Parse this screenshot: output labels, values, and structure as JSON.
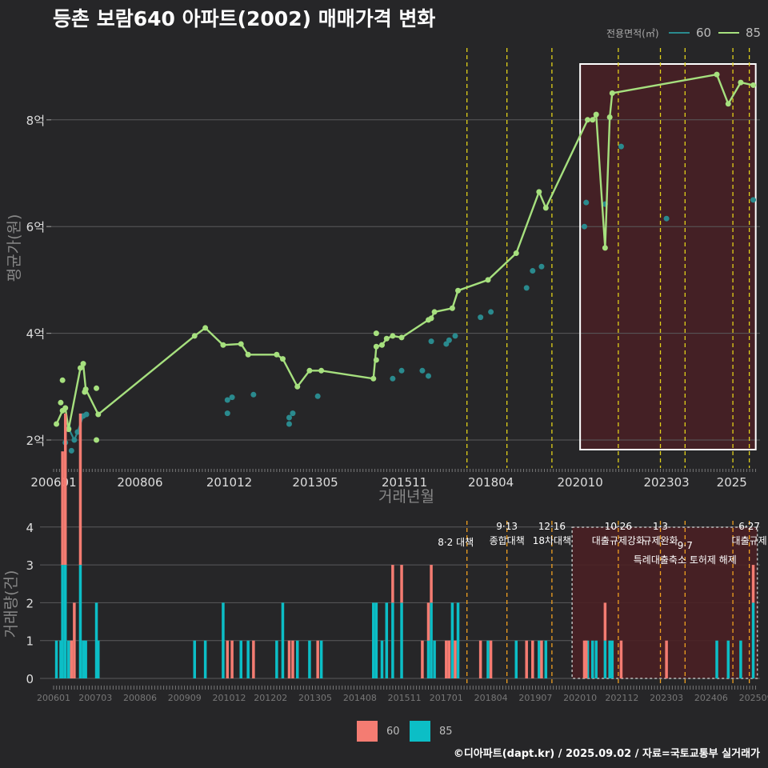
{
  "title": "등촌 보람640 아파트(2002) 매매가격 변화",
  "footer": "©디아파트(dapt.kr) / 2025.09.02 / 자료=국토교통부 실거래가",
  "legend": {
    "title": "전용면적(㎡)",
    "items": [
      "60",
      "85"
    ]
  },
  "colors": {
    "s60": "#2a8a8e",
    "s85": "#a6e07e",
    "bar60": "#f47c72",
    "bar85": "#0cbec6",
    "policy": "#e0d01a",
    "bg": "#262628",
    "highlight": "#4a2024"
  },
  "chart_data": [
    {
      "type": "line",
      "title": "등촌 보람640 아파트(2002) 매매가격 변화",
      "xlabel": "거래년월",
      "ylabel": "평균가(원)",
      "x_tick_labels": [
        "200601",
        "200806",
        "201012",
        "201305",
        "201511",
        "201804",
        "202010",
        "202303",
        "2025"
      ],
      "y_ticks": [
        {
          "v": 2,
          "label": "2억"
        },
        {
          "v": 4,
          "label": "4억"
        },
        {
          "v": 6,
          "label": "6억"
        },
        {
          "v": 8,
          "label": "8억"
        }
      ],
      "xlim": [
        2006.0,
        2025.7
      ],
      "ylim": [
        1.5,
        9.3
      ],
      "highlight_range": [
        2020.75,
        2025.67
      ],
      "policy_lines": [
        2017.58,
        2018.7,
        2019.96,
        2021.82,
        2023.0,
        2023.69,
        2025.03,
        2025.49
      ],
      "series": [
        {
          "name": "85",
          "points": [
            [
              2006.08,
              2.3
            ],
            [
              2006.25,
              2.55
            ],
            [
              2006.33,
              2.6
            ],
            [
              2006.42,
              2.2
            ],
            [
              2006.75,
              3.35
            ],
            [
              2006.83,
              3.43
            ],
            [
              2006.9,
              2.95
            ],
            [
              2007.25,
              2.48
            ],
            [
              2009.95,
              3.95
            ],
            [
              2010.25,
              4.1
            ],
            [
              2010.75,
              3.78
            ],
            [
              2011.25,
              3.8
            ],
            [
              2011.45,
              3.6
            ],
            [
              2012.25,
              3.6
            ],
            [
              2012.42,
              3.52
            ],
            [
              2012.83,
              3.0
            ],
            [
              2013.17,
              3.3
            ],
            [
              2013.5,
              3.3
            ],
            [
              2014.96,
              3.15
            ],
            [
              2015.04,
              3.75
            ],
            [
              2015.2,
              3.78
            ],
            [
              2015.33,
              3.9
            ],
            [
              2015.5,
              3.95
            ],
            [
              2015.75,
              3.92
            ],
            [
              2016.5,
              4.25
            ],
            [
              2016.58,
              4.28
            ],
            [
              2016.67,
              4.4
            ],
            [
              2017.17,
              4.47
            ],
            [
              2017.33,
              4.8
            ],
            [
              2018.17,
              5.0
            ],
            [
              2018.96,
              5.5
            ],
            [
              2019.6,
              6.65
            ],
            [
              2019.79,
              6.35
            ],
            [
              2020.96,
              8.0
            ],
            [
              2021.1,
              8.0
            ],
            [
              2021.2,
              8.1
            ],
            [
              2021.45,
              5.6
            ],
            [
              2021.58,
              8.05
            ],
            [
              2021.65,
              8.5
            ],
            [
              2024.58,
              8.85
            ],
            [
              2024.9,
              8.3
            ],
            [
              2025.25,
              8.7
            ],
            [
              2025.6,
              8.65
            ]
          ],
          "extra_points": [
            [
              2006.2,
              2.7
            ],
            [
              2006.25,
              3.12
            ],
            [
              2006.87,
              2.9
            ],
            [
              2007.2,
              2.97
            ],
            [
              2007.2,
              2.0
            ],
            [
              2015.04,
              4.0
            ],
            [
              2015.04,
              3.5
            ]
          ]
        },
        {
          "name": "60",
          "points": [
            [
              2006.42,
              2.22
            ],
            [
              2006.58,
              2.0
            ],
            [
              2006.67,
              2.15
            ],
            [
              2006.83,
              2.45
            ],
            [
              2006.92,
              2.48
            ]
          ],
          "extra_points": [
            [
              2006.33,
              1.95
            ],
            [
              2006.5,
              1.8
            ],
            [
              2010.87,
              2.5
            ],
            [
              2010.87,
              2.75
            ],
            [
              2011.0,
              2.8
            ],
            [
              2011.6,
              2.85
            ],
            [
              2012.6,
              2.3
            ],
            [
              2012.6,
              2.42
            ],
            [
              2012.7,
              2.5
            ],
            [
              2013.4,
              2.82
            ],
            [
              2015.5,
              3.15
            ],
            [
              2015.75,
              3.3
            ],
            [
              2016.33,
              3.3
            ],
            [
              2016.5,
              3.2
            ],
            [
              2016.58,
              3.85
            ],
            [
              2017.0,
              3.8
            ],
            [
              2017.08,
              3.87
            ],
            [
              2017.25,
              3.95
            ],
            [
              2017.96,
              4.3
            ],
            [
              2018.25,
              4.4
            ],
            [
              2019.25,
              4.85
            ],
            [
              2019.42,
              5.17
            ],
            [
              2019.67,
              5.25
            ],
            [
              2020.87,
              6.0
            ],
            [
              2020.92,
              6.45
            ],
            [
              2021.45,
              6.42
            ],
            [
              2021.9,
              7.5
            ],
            [
              2023.17,
              6.15
            ],
            [
              2025.6,
              6.5
            ]
          ]
        }
      ]
    },
    {
      "type": "bar",
      "stacked": true,
      "ylabel": "거래량(건)",
      "x_tick_labels": [
        "200601",
        "200703",
        "200806",
        "200909",
        "201012",
        "201202",
        "201305",
        "201408",
        "201511",
        "201701",
        "201804",
        "201907",
        "202010",
        "202112",
        "202303",
        "202406",
        "202509"
      ],
      "y_ticks": [
        0,
        1,
        2,
        3,
        4
      ],
      "legend": [
        "60",
        "85"
      ],
      "bars_60": [
        [
          2006.25,
          3
        ],
        [
          2006.33,
          4
        ],
        [
          2006.5,
          1
        ],
        [
          2006.58,
          2
        ],
        [
          2006.75,
          4
        ],
        [
          2010.87,
          1
        ],
        [
          2011.0,
          1
        ],
        [
          2011.6,
          1
        ],
        [
          2012.6,
          1
        ],
        [
          2012.7,
          1
        ],
        [
          2013.4,
          1
        ],
        [
          2015.5,
          1
        ],
        [
          2015.75,
          1
        ],
        [
          2016.33,
          1
        ],
        [
          2016.5,
          1
        ],
        [
          2016.58,
          1
        ],
        [
          2017.0,
          1
        ],
        [
          2017.08,
          1
        ],
        [
          2017.25,
          1
        ],
        [
          2017.96,
          1
        ],
        [
          2018.25,
          1
        ],
        [
          2019.25,
          1
        ],
        [
          2019.42,
          1
        ],
        [
          2019.67,
          1
        ],
        [
          2020.87,
          1
        ],
        [
          2020.92,
          1
        ],
        [
          2021.45,
          1
        ],
        [
          2021.9,
          1
        ],
        [
          2023.17,
          1
        ],
        [
          2025.6,
          1
        ]
      ],
      "bars_85": [
        [
          2006.08,
          1
        ],
        [
          2006.2,
          1
        ],
        [
          2006.25,
          3
        ],
        [
          2006.33,
          3
        ],
        [
          2006.42,
          1
        ],
        [
          2006.75,
          3
        ],
        [
          2006.83,
          1
        ],
        [
          2006.9,
          1
        ],
        [
          2007.2,
          2
        ],
        [
          2007.25,
          1
        ],
        [
          2009.95,
          1
        ],
        [
          2010.25,
          1
        ],
        [
          2010.75,
          2
        ],
        [
          2011.25,
          1
        ],
        [
          2011.45,
          1
        ],
        [
          2012.25,
          1
        ],
        [
          2012.42,
          2
        ],
        [
          2012.83,
          1
        ],
        [
          2013.17,
          1
        ],
        [
          2013.5,
          1
        ],
        [
          2014.96,
          2
        ],
        [
          2015.04,
          2
        ],
        [
          2015.2,
          1
        ],
        [
          2015.33,
          2
        ],
        [
          2015.5,
          2
        ],
        [
          2015.75,
          2
        ],
        [
          2016.5,
          1
        ],
        [
          2016.58,
          2
        ],
        [
          2016.67,
          1
        ],
        [
          2017.17,
          2
        ],
        [
          2017.33,
          2
        ],
        [
          2018.17,
          1
        ],
        [
          2018.96,
          1
        ],
        [
          2019.6,
          1
        ],
        [
          2019.79,
          1
        ],
        [
          2020.96,
          1
        ],
        [
          2021.1,
          1
        ],
        [
          2021.2,
          1
        ],
        [
          2021.45,
          1
        ],
        [
          2021.58,
          1
        ],
        [
          2021.65,
          1
        ],
        [
          2024.58,
          1
        ],
        [
          2024.9,
          1
        ],
        [
          2025.25,
          1
        ],
        [
          2025.6,
          2
        ]
      ],
      "policy_labels": [
        {
          "x": 2017.58,
          "lines": [
            "8·2 대책"
          ]
        },
        {
          "x": 2018.7,
          "lines": [
            "9·13",
            "종합대책"
          ]
        },
        {
          "x": 2019.96,
          "lines": [
            "12·16",
            "18차대책"
          ]
        },
        {
          "x": 2021.82,
          "lines": [
            "10·26",
            "대출규제강화"
          ]
        },
        {
          "x": 2023.0,
          "lines": [
            "1·3",
            "규제완화"
          ]
        },
        {
          "x": 2023.69,
          "lines": [
            "9·7",
            "특례대출축소 토허제 해제"
          ]
        },
        {
          "x": 2025.49,
          "lines": [
            "6·27",
            "대출규제"
          ]
        }
      ]
    }
  ]
}
